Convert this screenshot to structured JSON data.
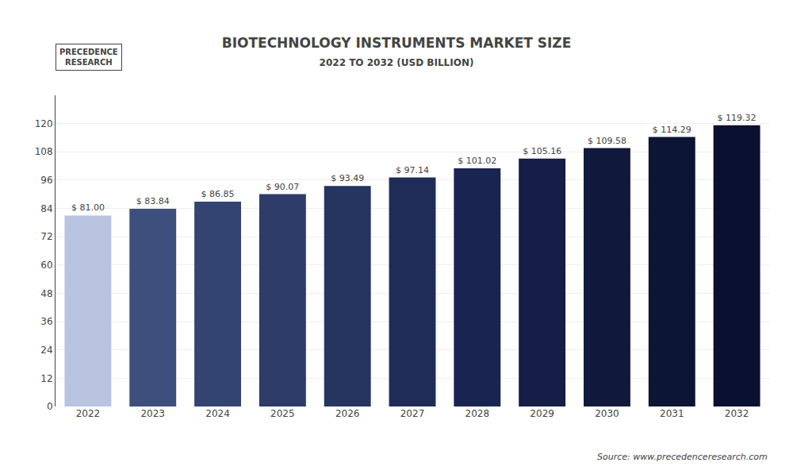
{
  "chart_data": {
    "type": "bar",
    "title": "BIOTECHNOLOGY INSTRUMENTS MARKET SIZE",
    "subtitle": "2022 TO 2032 (USD BILLION)",
    "categories": [
      "2022",
      "2023",
      "2024",
      "2025",
      "2026",
      "2027",
      "2028",
      "2029",
      "2030",
      "2031",
      "2032"
    ],
    "values": [
      81.0,
      83.84,
      86.85,
      90.07,
      93.49,
      97.14,
      101.02,
      105.16,
      109.58,
      114.29,
      119.32
    ],
    "value_labels": [
      "$ 81.00",
      "$ 83.84",
      "$ 86.85",
      "$ 90.07",
      "$ 93.49",
      "$ 97.14",
      "$ 101.02",
      "$ 105.16",
      "$ 109.58",
      "$ 114.29",
      "$ 119.32"
    ],
    "data_labels": true,
    "colors": [
      "#b8c4e0",
      "#3d4f7c",
      "#344472",
      "#2d3c68",
      "#263460",
      "#1f2c58",
      "#192450",
      "#141e46",
      "#10193c",
      "#0d1535",
      "#0a1030"
    ],
    "ylim": [
      0,
      132
    ],
    "yticks": [
      0,
      12,
      24,
      36,
      48,
      60,
      72,
      84,
      96,
      108,
      120
    ],
    "grid": true,
    "annotations": [
      "PRECEDENCE",
      "RESEARCH",
      "Source: www.precedenceresearch.com"
    ]
  }
}
